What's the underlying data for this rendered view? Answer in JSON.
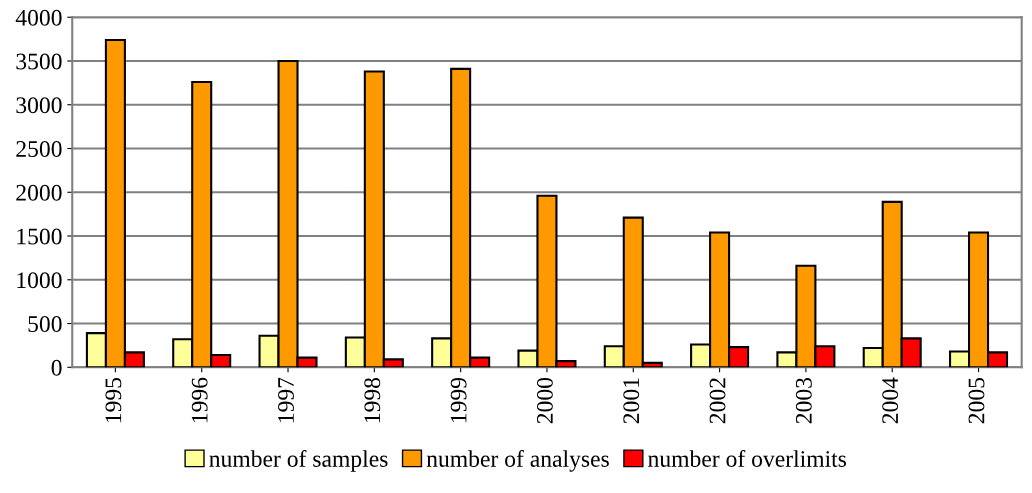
{
  "chart_data": {
    "type": "bar",
    "categories": [
      "1995",
      "1996",
      "1997",
      "1998",
      "1999",
      "2000",
      "2001",
      "2002",
      "2003",
      "2004",
      "2005"
    ],
    "series": [
      {
        "name": "number of samples",
        "color": "#ffff99",
        "values": [
          390,
          320,
          360,
          340,
          330,
          190,
          240,
          260,
          170,
          220,
          180
        ]
      },
      {
        "name": "number of analyses",
        "color": "#ff9900",
        "values": [
          3740,
          3260,
          3500,
          3380,
          3410,
          1960,
          1710,
          1540,
          1160,
          1890,
          1540
        ]
      },
      {
        "name": "number of overlimits",
        "color": "#ff0000",
        "values": [
          170,
          140,
          110,
          90,
          110,
          70,
          50,
          230,
          240,
          330,
          170
        ]
      }
    ],
    "ylim": [
      0,
      4000
    ],
    "yticks": [
      0,
      500,
      1000,
      1500,
      2000,
      2500,
      3000,
      3500,
      4000
    ],
    "grid": "y",
    "legend": "bottom"
  }
}
